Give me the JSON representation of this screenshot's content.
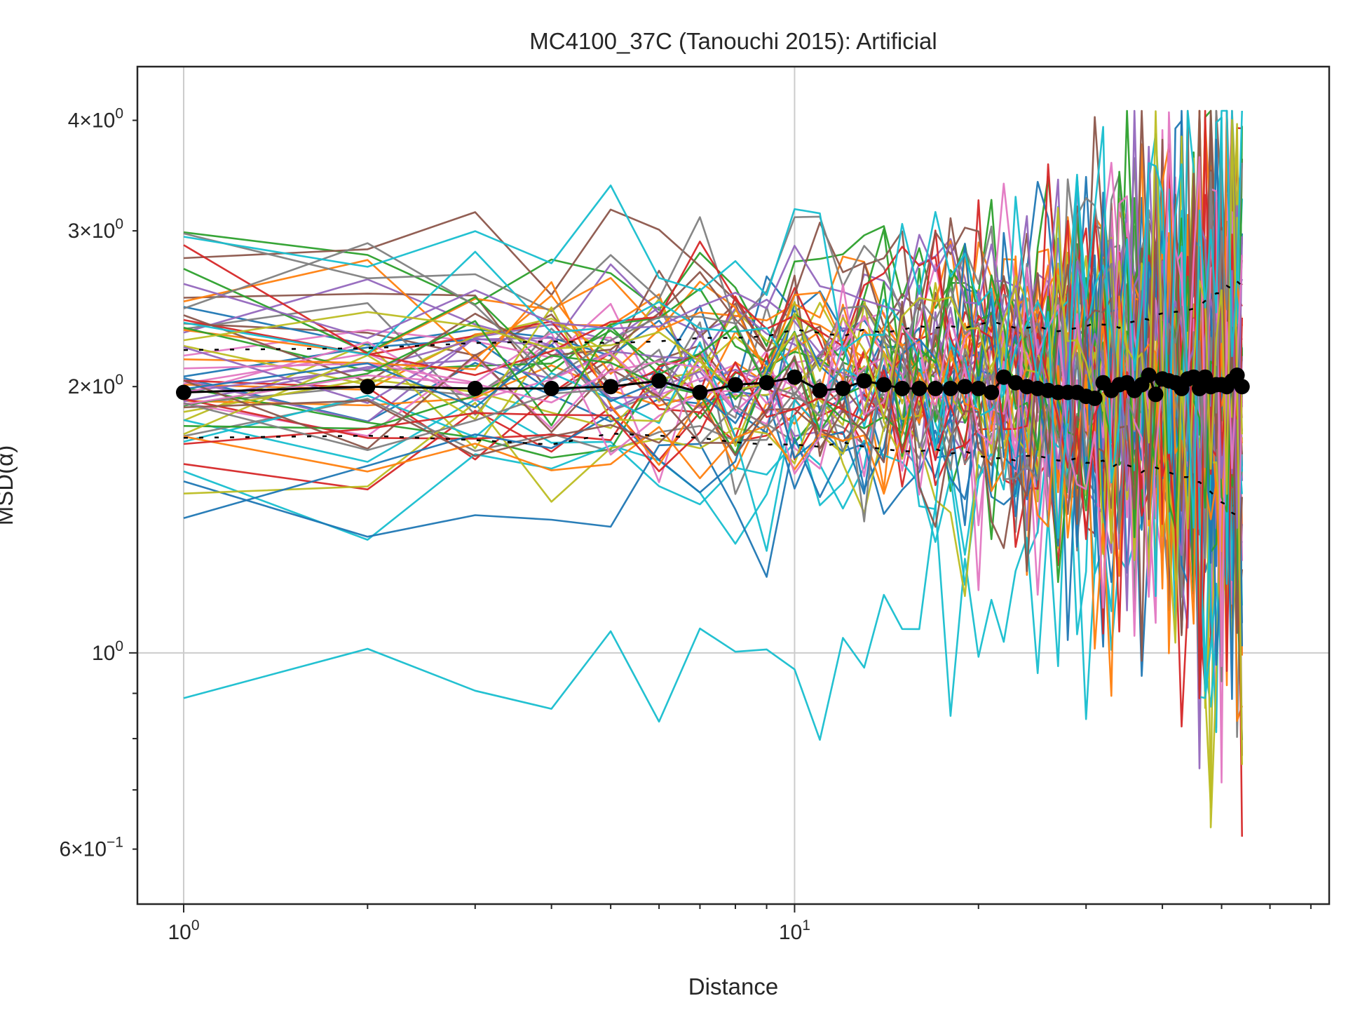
{
  "chart_data": {
    "type": "line",
    "title": "MC4100_37C (Tanouchi 2015): Artificial",
    "xlabel": "Distance",
    "ylabel": "MSD(α)",
    "x_scale": "log",
    "y_scale": "log",
    "xlim": [
      0.84,
      75
    ],
    "ylim": [
      0.52,
      4.6
    ],
    "grid": "on (major ticks)",
    "x_ticks": [
      {
        "value": 1,
        "base": "10",
        "exp": "0"
      },
      {
        "value": 10,
        "base": "10",
        "exp": "1"
      }
    ],
    "y_ticks": [
      {
        "value": 0.6,
        "mant": "6",
        "base": "10",
        "exp": "−1"
      },
      {
        "value": 1,
        "mant": "",
        "base": "10",
        "exp": "0"
      },
      {
        "value": 2,
        "mant": "2",
        "base": "10",
        "exp": "0"
      },
      {
        "value": 3,
        "mant": "3",
        "base": "10",
        "exp": "0"
      },
      {
        "value": 4,
        "mant": "4",
        "base": "10",
        "exp": "0"
      }
    ],
    "palette": [
      "#1f77b4",
      "#ff7f0e",
      "#2ca02c",
      "#d62728",
      "#9467bd",
      "#8c564b",
      "#e377c2",
      "#7f7f7f",
      "#bcbd22",
      "#17becf"
    ],
    "individual_series": {
      "note": "many overlapping per-lineage lines; shown as representative bundle",
      "count": 60,
      "center": 2.0,
      "spread_min": 0.08,
      "spread_max": 0.42
    },
    "mean": {
      "color": "#000000",
      "x": [
        1,
        2,
        3,
        4,
        5,
        6,
        7,
        8,
        9,
        10,
        11,
        12,
        13,
        14,
        15,
        16,
        17,
        18,
        19,
        20,
        21,
        22,
        23,
        24,
        25,
        26,
        27,
        28,
        29,
        30,
        31,
        32,
        33,
        34,
        35,
        36,
        37,
        38,
        39,
        40,
        41,
        42,
        43,
        44,
        45,
        46,
        47,
        48,
        49,
        50,
        51,
        52,
        53,
        54
      ],
      "y": [
        1.97,
        2.0,
        1.99,
        1.99,
        2.0,
        2.03,
        1.97,
        2.01,
        2.02,
        2.05,
        1.98,
        1.99,
        2.03,
        2.01,
        1.99,
        1.99,
        1.99,
        1.99,
        2.0,
        1.99,
        1.97,
        2.05,
        2.02,
        2.0,
        1.99,
        1.98,
        1.97,
        1.97,
        1.97,
        1.95,
        1.94,
        2.02,
        1.98,
        2.01,
        2.02,
        1.98,
        2.01,
        2.06,
        1.96,
        2.04,
        2.03,
        2.02,
        1.99,
        2.04,
        2.05,
        1.99,
        2.05,
        2.0,
        2.01,
        2.01,
        2.0,
        2.03,
        2.06,
        2.0
      ]
    },
    "upper_band": {
      "color": "#000000",
      "style": "dashed",
      "y": [
        2.2,
        2.21,
        2.24,
        2.25,
        2.24,
        2.25,
        2.27,
        2.27,
        2.28,
        2.32,
        2.3,
        2.28,
        2.32,
        2.3,
        2.32,
        2.34,
        2.33,
        2.34,
        2.33,
        2.35,
        2.37,
        2.35,
        2.33,
        2.33,
        2.34,
        2.32,
        2.31,
        2.32,
        2.33,
        2.34,
        2.36,
        2.35,
        2.35,
        2.33,
        2.36,
        2.37,
        2.39,
        2.38,
        2.41,
        2.42,
        2.42,
        2.43,
        2.43,
        2.44,
        2.45,
        2.47,
        2.5,
        2.52,
        2.55,
        2.55,
        2.6,
        2.58,
        2.63,
        2.6
      ]
    },
    "lower_band": {
      "color": "#000000",
      "style": "dashed",
      "y": [
        1.75,
        1.76,
        1.74,
        1.72,
        1.77,
        1.76,
        1.75,
        1.73,
        1.72,
        1.72,
        1.71,
        1.73,
        1.71,
        1.7,
        1.69,
        1.69,
        1.7,
        1.68,
        1.69,
        1.67,
        1.66,
        1.66,
        1.65,
        1.67,
        1.67,
        1.66,
        1.65,
        1.65,
        1.66,
        1.64,
        1.64,
        1.65,
        1.62,
        1.64,
        1.63,
        1.62,
        1.6,
        1.62,
        1.62,
        1.61,
        1.6,
        1.59,
        1.58,
        1.58,
        1.56,
        1.56,
        1.54,
        1.52,
        1.5,
        1.48,
        1.47,
        1.44,
        1.43,
        1.42
      ]
    }
  }
}
